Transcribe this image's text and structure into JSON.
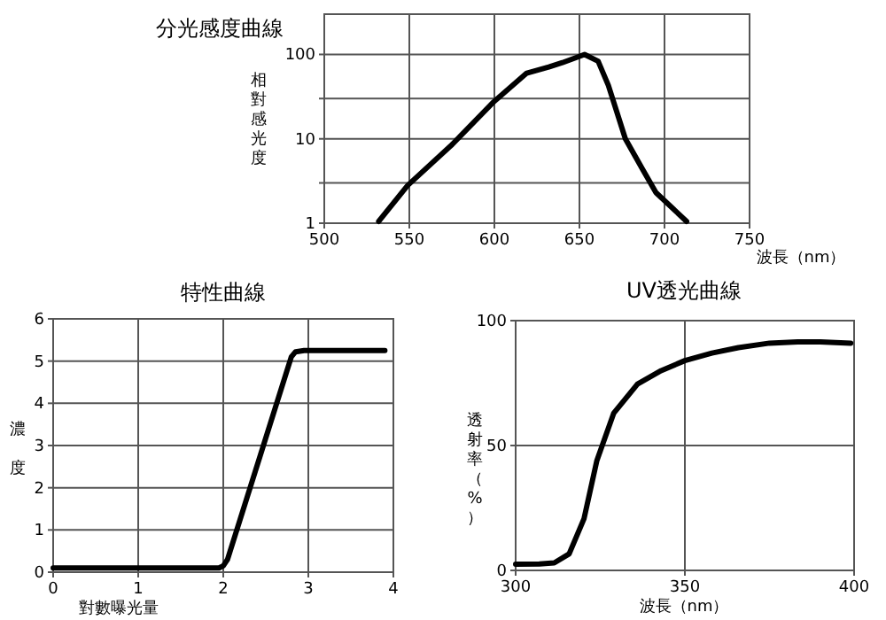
{
  "chart_data": [
    {
      "type": "line",
      "title": "分光感度曲線",
      "ylabel": "相對感光度",
      "xlabel": "波長（nm）",
      "log": "y",
      "grid": true,
      "xlim": [
        500,
        750
      ],
      "xticks": [
        500,
        550,
        600,
        650,
        700,
        750
      ],
      "ylim": [
        1,
        300
      ],
      "yticks": [
        1,
        {
          "value": 3,
          "label": null
        },
        10,
        {
          "value": 30,
          "label": null
        },
        100
      ],
      "series": [
        {
          "color": "#000000",
          "x": [
            532,
            549,
            575,
            599,
            619,
            632,
            640,
            653,
            661,
            667,
            677,
            687,
            695,
            713
          ],
          "values": [
            1.05,
            2.8,
            8.5,
            26.7,
            60,
            71,
            80,
            100,
            83,
            43,
            10,
            4.4,
            2.3,
            1.05
          ]
        }
      ]
    },
    {
      "type": "line",
      "title": "特性曲線",
      "ylabel": "濃度",
      "xlabel": "對數曝光量",
      "grid": true,
      "xlim": [
        0,
        4
      ],
      "xticks": [
        0,
        1,
        2,
        3,
        4
      ],
      "ylim": [
        0,
        6
      ],
      "yticks": [
        0,
        1,
        2,
        3,
        4,
        5,
        6
      ],
      "series": [
        {
          "color": "#000000",
          "x": [
            0,
            1.95,
            2.0,
            2.05,
            2.8,
            2.85,
            2.95,
            3.9
          ],
          "values": [
            0.1,
            0.1,
            0.15,
            0.3,
            5.1,
            5.22,
            5.25,
            5.25
          ]
        }
      ]
    },
    {
      "type": "line",
      "title": "UV透光曲線",
      "ylabel": "透射率（%）",
      "xlabel": "波長（nm）",
      "grid": true,
      "xlim": [
        300,
        400
      ],
      "xticks": [
        300,
        350,
        400
      ],
      "ylim": [
        0,
        100
      ],
      "yticks": [
        0,
        50,
        100
      ],
      "series": [
        {
          "color": "#000000",
          "x": [
            300,
            307,
            311.4,
            315.8,
            320.2,
            324,
            329,
            336,
            343,
            350,
            358,
            365.8,
            375,
            383.3,
            390,
            399
          ],
          "values": [
            2.5,
            2.6,
            3,
            6.6,
            20.7,
            44,
            63,
            74.6,
            80,
            84,
            87,
            89.2,
            91,
            91.5,
            91.5,
            91
          ]
        }
      ]
    }
  ]
}
